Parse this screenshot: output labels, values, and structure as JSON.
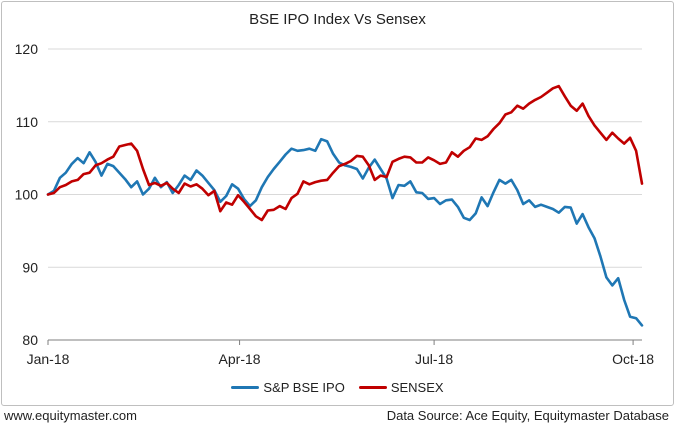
{
  "chart_data": {
    "type": "line",
    "title": "BSE IPO Index Vs Sensex",
    "xlabel": "",
    "ylabel": "",
    "ylim": [
      80,
      120
    ],
    "yticks": [
      "80",
      "90",
      "100",
      "110",
      "120"
    ],
    "xticks": [
      "Jan-18",
      "Apr-18",
      "Jul-18",
      "Oct-18"
    ],
    "xlim": [
      0,
      40
    ],
    "grid": "horizontal",
    "legend_position": "bottom",
    "series": [
      {
        "name": "S&P BSE IPO",
        "color": "#1f77b4",
        "points": [
          [
            0,
            100
          ],
          [
            0.4,
            100.5
          ],
          [
            0.8,
            102.3
          ],
          [
            1.2,
            103.0
          ],
          [
            1.6,
            104.2
          ],
          [
            2.0,
            105.0
          ],
          [
            2.4,
            104.3
          ],
          [
            2.8,
            105.8
          ],
          [
            3.2,
            104.5
          ],
          [
            3.6,
            102.6
          ],
          [
            4.0,
            104.2
          ],
          [
            4.4,
            103.9
          ],
          [
            4.8,
            103.0
          ],
          [
            5.2,
            102.1
          ],
          [
            5.6,
            101.0
          ],
          [
            6.0,
            101.8
          ],
          [
            6.4,
            100.0
          ],
          [
            6.8,
            100.8
          ],
          [
            7.2,
            102.3
          ],
          [
            7.6,
            101.0
          ],
          [
            8.0,
            101.7
          ],
          [
            8.4,
            100.2
          ],
          [
            8.8,
            101.3
          ],
          [
            9.2,
            102.6
          ],
          [
            9.6,
            102.0
          ],
          [
            10.0,
            103.3
          ],
          [
            10.4,
            102.6
          ],
          [
            10.8,
            101.6
          ],
          [
            11.2,
            100.6
          ],
          [
            11.6,
            99.0
          ],
          [
            12.0,
            99.8
          ],
          [
            12.4,
            101.4
          ],
          [
            12.8,
            100.8
          ],
          [
            13.2,
            99.4
          ],
          [
            13.6,
            98.4
          ],
          [
            14.0,
            99.2
          ],
          [
            14.4,
            101.0
          ],
          [
            14.8,
            102.4
          ],
          [
            15.2,
            103.5
          ],
          [
            15.6,
            104.5
          ],
          [
            16.0,
            105.5
          ],
          [
            16.4,
            106.3
          ],
          [
            16.8,
            106.0
          ],
          [
            17.2,
            106.1
          ],
          [
            17.6,
            106.3
          ],
          [
            18.0,
            106.0
          ],
          [
            18.4,
            107.6
          ],
          [
            18.8,
            107.3
          ],
          [
            19.2,
            105.6
          ],
          [
            19.6,
            104.4
          ],
          [
            20.0,
            104.0
          ],
          [
            20.4,
            103.8
          ],
          [
            20.8,
            103.5
          ],
          [
            21.2,
            102.2
          ],
          [
            21.6,
            103.7
          ],
          [
            22.0,
            104.8
          ],
          [
            22.4,
            103.5
          ],
          [
            22.8,
            102.2
          ],
          [
            23.2,
            99.5
          ],
          [
            23.6,
            101.3
          ],
          [
            24.0,
            101.2
          ],
          [
            24.4,
            101.8
          ],
          [
            24.8,
            100.3
          ],
          [
            25.2,
            100.2
          ],
          [
            25.6,
            99.4
          ],
          [
            26.0,
            99.5
          ],
          [
            26.4,
            98.7
          ],
          [
            26.8,
            99.2
          ],
          [
            27.2,
            99.3
          ],
          [
            27.6,
            98.3
          ],
          [
            28.0,
            96.8
          ],
          [
            28.4,
            96.5
          ],
          [
            28.8,
            97.4
          ],
          [
            29.2,
            99.6
          ],
          [
            29.6,
            98.4
          ],
          [
            30.0,
            100.3
          ],
          [
            30.4,
            102.0
          ],
          [
            30.8,
            101.5
          ],
          [
            31.2,
            102.0
          ],
          [
            31.6,
            100.6
          ],
          [
            32.0,
            98.7
          ],
          [
            32.4,
            99.2
          ],
          [
            32.8,
            98.3
          ],
          [
            33.2,
            98.6
          ],
          [
            33.6,
            98.3
          ],
          [
            34.0,
            98.0
          ],
          [
            34.4,
            97.5
          ],
          [
            34.8,
            98.3
          ],
          [
            35.2,
            98.2
          ],
          [
            35.6,
            96.0
          ],
          [
            36.0,
            97.3
          ],
          [
            36.4,
            95.5
          ],
          [
            36.8,
            94.0
          ],
          [
            37.2,
            91.5
          ],
          [
            37.6,
            88.6
          ],
          [
            38.0,
            87.5
          ],
          [
            38.4,
            88.5
          ],
          [
            38.8,
            85.5
          ],
          [
            39.2,
            83.2
          ],
          [
            39.6,
            83.0
          ],
          [
            40.0,
            82.0
          ]
        ]
      },
      {
        "name": "SENSEX",
        "color": "#c00000",
        "points": [
          [
            0,
            100
          ],
          [
            0.4,
            100.2
          ],
          [
            0.8,
            101.0
          ],
          [
            1.2,
            101.3
          ],
          [
            1.6,
            101.8
          ],
          [
            2.0,
            102.0
          ],
          [
            2.4,
            102.8
          ],
          [
            2.8,
            103.0
          ],
          [
            3.2,
            104.0
          ],
          [
            3.6,
            104.3
          ],
          [
            4.0,
            104.8
          ],
          [
            4.4,
            105.2
          ],
          [
            4.8,
            106.6
          ],
          [
            5.2,
            106.8
          ],
          [
            5.6,
            107.0
          ],
          [
            6.0,
            106.0
          ],
          [
            6.4,
            103.5
          ],
          [
            6.8,
            101.3
          ],
          [
            7.2,
            101.6
          ],
          [
            7.6,
            101.2
          ],
          [
            8.0,
            101.6
          ],
          [
            8.4,
            100.8
          ],
          [
            8.8,
            100.2
          ],
          [
            9.2,
            101.5
          ],
          [
            9.6,
            101.1
          ],
          [
            10.0,
            101.4
          ],
          [
            10.4,
            100.8
          ],
          [
            10.8,
            99.9
          ],
          [
            11.2,
            100.5
          ],
          [
            11.6,
            97.7
          ],
          [
            12.0,
            98.9
          ],
          [
            12.4,
            98.6
          ],
          [
            12.8,
            99.9
          ],
          [
            13.2,
            99.0
          ],
          [
            13.6,
            98.0
          ],
          [
            14.0,
            97.0
          ],
          [
            14.4,
            96.5
          ],
          [
            14.8,
            97.8
          ],
          [
            15.2,
            97.9
          ],
          [
            15.6,
            98.4
          ],
          [
            16.0,
            98.0
          ],
          [
            16.4,
            99.5
          ],
          [
            16.8,
            100.1
          ],
          [
            17.2,
            101.8
          ],
          [
            17.6,
            101.4
          ],
          [
            18.0,
            101.7
          ],
          [
            18.4,
            101.9
          ],
          [
            18.8,
            102.0
          ],
          [
            19.2,
            103.0
          ],
          [
            19.6,
            103.9
          ],
          [
            20.0,
            104.2
          ],
          [
            20.4,
            104.6
          ],
          [
            20.8,
            105.3
          ],
          [
            21.2,
            105.2
          ],
          [
            21.6,
            104.0
          ],
          [
            22.0,
            102.0
          ],
          [
            22.4,
            102.6
          ],
          [
            22.8,
            102.4
          ],
          [
            23.2,
            104.5
          ],
          [
            23.6,
            104.9
          ],
          [
            24.0,
            105.2
          ],
          [
            24.4,
            105.1
          ],
          [
            24.8,
            104.4
          ],
          [
            25.2,
            104.4
          ],
          [
            25.6,
            105.1
          ],
          [
            26.0,
            104.7
          ],
          [
            26.4,
            104.2
          ],
          [
            26.8,
            104.4
          ],
          [
            27.2,
            105.8
          ],
          [
            27.6,
            105.2
          ],
          [
            28.0,
            106.0
          ],
          [
            28.4,
            106.5
          ],
          [
            28.8,
            107.7
          ],
          [
            29.2,
            107.5
          ],
          [
            29.6,
            108.0
          ],
          [
            30.0,
            109.0
          ],
          [
            30.4,
            109.8
          ],
          [
            30.8,
            111.0
          ],
          [
            31.2,
            111.3
          ],
          [
            31.6,
            112.2
          ],
          [
            32.0,
            111.8
          ],
          [
            32.4,
            112.5
          ],
          [
            32.8,
            113.0
          ],
          [
            33.2,
            113.4
          ],
          [
            33.6,
            114.0
          ],
          [
            34.0,
            114.6
          ],
          [
            34.4,
            114.9
          ],
          [
            34.8,
            113.5
          ],
          [
            35.2,
            112.2
          ],
          [
            35.6,
            111.5
          ],
          [
            36.0,
            112.5
          ],
          [
            36.4,
            110.8
          ],
          [
            36.8,
            109.5
          ],
          [
            37.2,
            108.5
          ],
          [
            37.6,
            107.5
          ],
          [
            38.0,
            108.5
          ],
          [
            38.4,
            107.7
          ],
          [
            38.8,
            107.0
          ],
          [
            39.2,
            107.8
          ],
          [
            39.6,
            106.0
          ],
          [
            40.0,
            101.5
          ]
        ]
      }
    ]
  },
  "footer": {
    "website": "www.equitymaster.com",
    "source": "Data Source: Ace Equity, Equitymaster Database"
  }
}
